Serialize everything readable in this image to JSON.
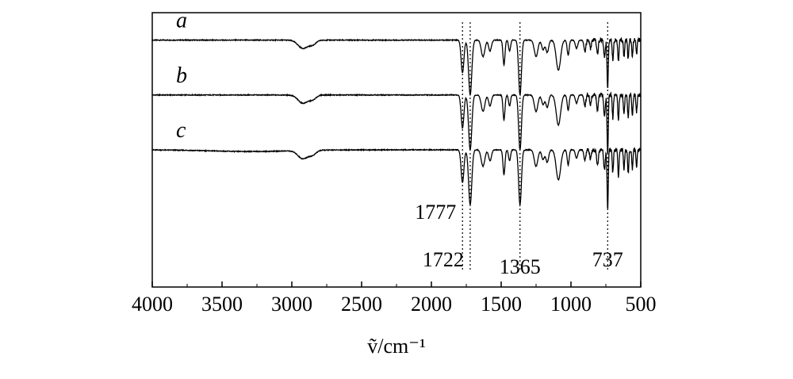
{
  "chart_data": {
    "type": "line",
    "xlabel": "ṽ/cm⁻¹",
    "xlim": [
      4000,
      500
    ],
    "x_reversed": true,
    "x_ticks": [
      4000,
      3500,
      3000,
      2500,
      2000,
      1500,
      1000,
      500
    ],
    "x_tick_labels": [
      "4000",
      "3500",
      "3000",
      "2500",
      "2000",
      "1500",
      "1000",
      "500"
    ],
    "y_ticks_shown": false,
    "grid": false,
    "reference_lines": [
      1777,
      1722,
      1365,
      737
    ],
    "peak_annotations": [
      {
        "label": "1777",
        "x": 1777,
        "series": "c"
      },
      {
        "label": "1722",
        "x": 1722,
        "series": "c"
      },
      {
        "label": "1365",
        "x": 1365,
        "series": "c"
      },
      {
        "label": "737",
        "x": 737,
        "series": "c"
      }
    ],
    "series": [
      {
        "name": "a",
        "baseline": 0.9
      },
      {
        "name": "b",
        "baseline": 0.7
      },
      {
        "name": "c",
        "baseline": 0.5
      }
    ],
    "bands": [
      {
        "x": 2920,
        "depth": 0.03,
        "width": 50
      },
      {
        "x": 2850,
        "depth": 0.015,
        "width": 35
      },
      {
        "x": 1777,
        "depth": 0.12,
        "width": 14
      },
      {
        "x": 1722,
        "depth": 0.2,
        "width": 16
      },
      {
        "x": 1630,
        "depth": 0.06,
        "width": 18
      },
      {
        "x": 1580,
        "depth": 0.04,
        "width": 14
      },
      {
        "x": 1480,
        "depth": 0.09,
        "width": 10
      },
      {
        "x": 1440,
        "depth": 0.04,
        "width": 10
      },
      {
        "x": 1365,
        "depth": 0.2,
        "width": 14
      },
      {
        "x": 1250,
        "depth": 0.06,
        "width": 18
      },
      {
        "x": 1200,
        "depth": 0.035,
        "width": 14
      },
      {
        "x": 1170,
        "depth": 0.045,
        "width": 14
      },
      {
        "x": 1090,
        "depth": 0.11,
        "width": 22
      },
      {
        "x": 1020,
        "depth": 0.055,
        "width": 10
      },
      {
        "x": 960,
        "depth": 0.03,
        "width": 12
      },
      {
        "x": 900,
        "depth": 0.04,
        "width": 10
      },
      {
        "x": 860,
        "depth": 0.03,
        "width": 8
      },
      {
        "x": 810,
        "depth": 0.05,
        "width": 8
      },
      {
        "x": 760,
        "depth": 0.06,
        "width": 8
      },
      {
        "x": 737,
        "depth": 0.18,
        "width": 6
      },
      {
        "x": 700,
        "depth": 0.07,
        "width": 6
      },
      {
        "x": 660,
        "depth": 0.08,
        "width": 6
      },
      {
        "x": 620,
        "depth": 0.06,
        "width": 6
      },
      {
        "x": 590,
        "depth": 0.07,
        "width": 6
      },
      {
        "x": 560,
        "depth": 0.06,
        "width": 6
      },
      {
        "x": 530,
        "depth": 0.05,
        "width": 6
      }
    ]
  }
}
